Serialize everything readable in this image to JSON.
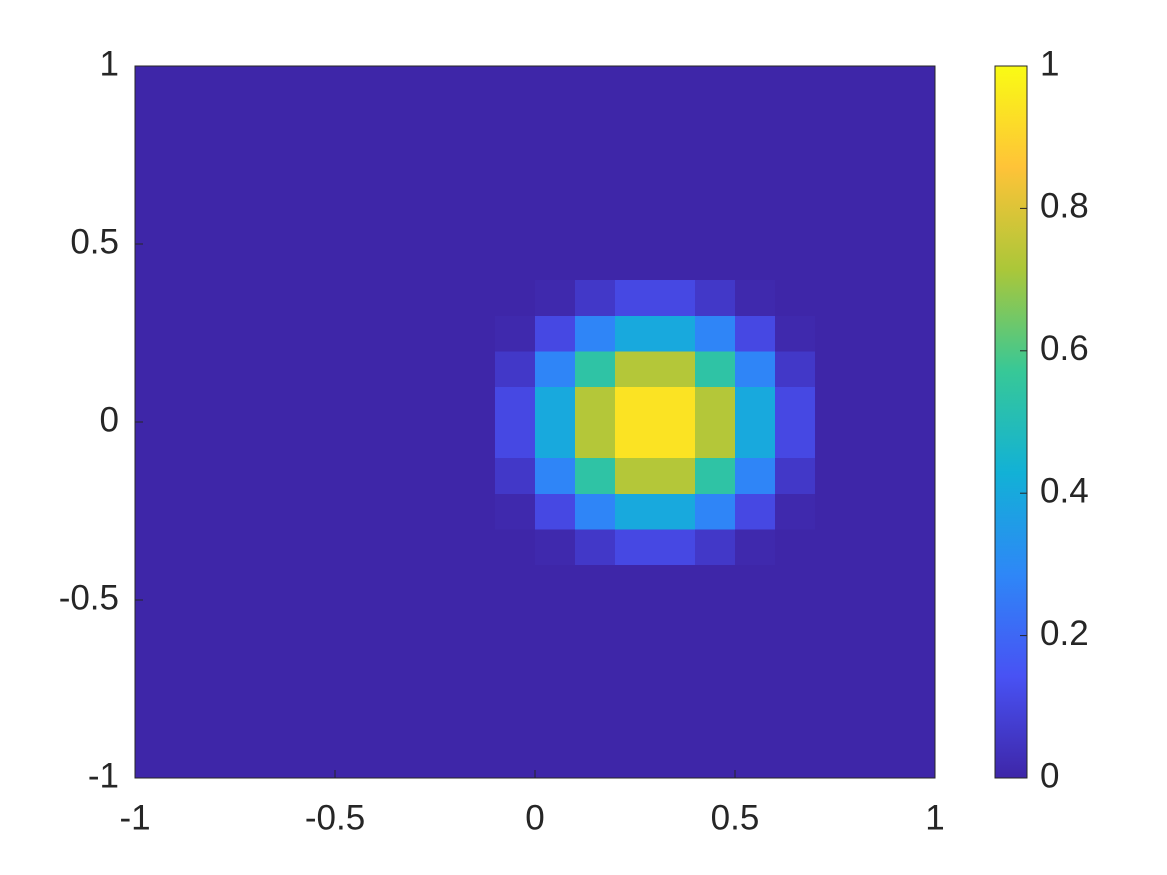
{
  "chart_data": {
    "type": "heatmap",
    "x": [
      -0.95,
      -0.85,
      -0.75,
      -0.65,
      -0.55,
      -0.45,
      -0.35,
      -0.25,
      -0.15,
      -0.05,
      0.05,
      0.15,
      0.25,
      0.35,
      0.45,
      0.55,
      0.65,
      0.75,
      0.85,
      0.95
    ],
    "y": [
      -0.95,
      -0.85,
      -0.75,
      -0.65,
      -0.55,
      -0.45,
      -0.35,
      -0.25,
      -0.15,
      -0.05,
      0.05,
      0.15,
      0.25,
      0.35,
      0.45,
      0.55,
      0.65,
      0.75,
      0.85,
      0.95
    ],
    "z": [
      [
        0,
        0,
        0,
        0,
        0,
        0,
        0,
        0,
        0,
        0,
        0,
        0,
        0,
        0,
        0,
        0,
        0,
        0,
        0,
        0
      ],
      [
        0,
        0,
        0,
        0,
        0,
        0,
        0,
        0,
        0,
        0,
        0,
        0,
        0,
        0,
        0,
        0,
        0,
        0,
        0,
        0
      ],
      [
        0,
        0,
        0,
        0,
        0,
        0,
        0,
        0,
        0,
        0,
        0,
        0,
        0,
        0,
        0,
        0,
        0,
        0,
        0,
        0
      ],
      [
        0,
        0,
        0,
        0,
        0,
        0,
        0,
        0,
        0,
        0,
        0,
        0,
        0,
        0,
        0,
        0,
        0,
        0,
        0,
        0
      ],
      [
        0,
        0,
        0,
        0,
        0,
        0,
        0,
        0,
        0,
        0,
        0,
        0,
        0,
        0,
        0,
        0,
        0,
        0,
        0,
        0
      ],
      [
        0,
        0,
        0,
        0,
        0,
        0,
        0,
        0,
        0,
        0,
        0,
        0,
        0,
        0,
        0,
        0,
        0,
        0,
        0,
        0
      ],
      [
        0,
        0,
        0,
        0,
        0,
        0,
        0,
        0,
        0,
        0,
        0.01,
        0.06,
        0.11,
        0.11,
        0.06,
        0.01,
        0,
        0,
        0,
        0
      ],
      [
        0,
        0,
        0,
        0,
        0,
        0,
        0,
        0,
        0,
        0.01,
        0.11,
        0.28,
        0.4,
        0.4,
        0.28,
        0.11,
        0.01,
        0,
        0,
        0
      ],
      [
        0,
        0,
        0,
        0,
        0,
        0,
        0,
        0,
        0,
        0.06,
        0.28,
        0.54,
        0.73,
        0.73,
        0.54,
        0.28,
        0.06,
        0,
        0,
        0
      ],
      [
        0,
        0,
        0,
        0,
        0,
        0,
        0,
        0,
        0,
        0.11,
        0.4,
        0.73,
        0.94,
        0.94,
        0.73,
        0.4,
        0.11,
        0,
        0,
        0
      ],
      [
        0,
        0,
        0,
        0,
        0,
        0,
        0,
        0,
        0,
        0.11,
        0.4,
        0.73,
        0.94,
        0.94,
        0.73,
        0.4,
        0.11,
        0,
        0,
        0
      ],
      [
        0,
        0,
        0,
        0,
        0,
        0,
        0,
        0,
        0,
        0.06,
        0.28,
        0.54,
        0.73,
        0.73,
        0.54,
        0.28,
        0.06,
        0,
        0,
        0
      ],
      [
        0,
        0,
        0,
        0,
        0,
        0,
        0,
        0,
        0,
        0.01,
        0.11,
        0.28,
        0.4,
        0.4,
        0.28,
        0.11,
        0.01,
        0,
        0,
        0
      ],
      [
        0,
        0,
        0,
        0,
        0,
        0,
        0,
        0,
        0,
        0,
        0.01,
        0.06,
        0.11,
        0.11,
        0.06,
        0.01,
        0,
        0,
        0,
        0
      ],
      [
        0,
        0,
        0,
        0,
        0,
        0,
        0,
        0,
        0,
        0,
        0,
        0,
        0,
        0,
        0,
        0,
        0,
        0,
        0,
        0
      ],
      [
        0,
        0,
        0,
        0,
        0,
        0,
        0,
        0,
        0,
        0,
        0,
        0,
        0,
        0,
        0,
        0,
        0,
        0,
        0,
        0
      ],
      [
        0,
        0,
        0,
        0,
        0,
        0,
        0,
        0,
        0,
        0,
        0,
        0,
        0,
        0,
        0,
        0,
        0,
        0,
        0,
        0
      ],
      [
        0,
        0,
        0,
        0,
        0,
        0,
        0,
        0,
        0,
        0,
        0,
        0,
        0,
        0,
        0,
        0,
        0,
        0,
        0,
        0
      ],
      [
        0,
        0,
        0,
        0,
        0,
        0,
        0,
        0,
        0,
        0,
        0,
        0,
        0,
        0,
        0,
        0,
        0,
        0,
        0,
        0
      ],
      [
        0,
        0,
        0,
        0,
        0,
        0,
        0,
        0,
        0,
        0,
        0,
        0,
        0,
        0,
        0,
        0,
        0,
        0,
        0,
        0
      ]
    ],
    "xlim": [
      -1,
      1
    ],
    "ylim": [
      -1,
      1
    ],
    "xticks": [
      -1,
      -0.5,
      0,
      0.5,
      1
    ],
    "yticks": [
      -1,
      -0.5,
      0,
      0.5,
      1
    ],
    "clim": [
      0,
      1
    ],
    "cticks": [
      0,
      0.2,
      0.4,
      0.6,
      0.8,
      1
    ],
    "colormap": [
      "#3e26a8",
      "#4852f4",
      "#2e87f7",
      "#12b1d6",
      "#37c897",
      "#abc739",
      "#fec338",
      "#f9fb14"
    ]
  }
}
